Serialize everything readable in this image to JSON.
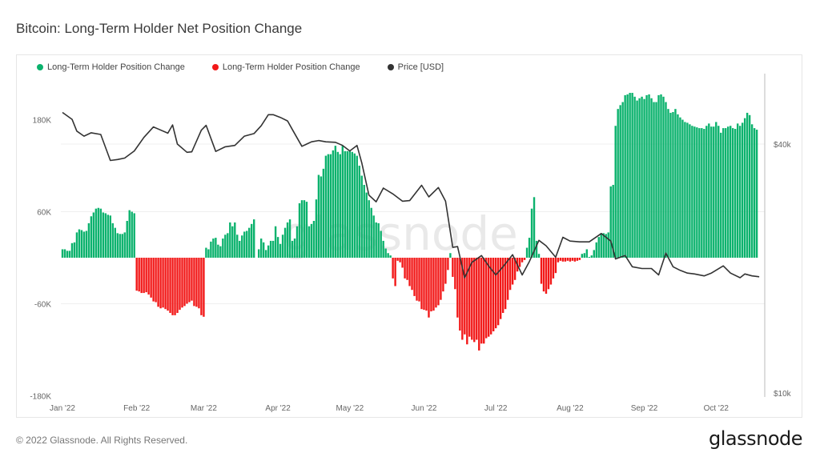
{
  "title": "Bitcoin: Long-Term Holder Net Position Change",
  "footer": "© 2022 Glassnode. All Rights Reserved.",
  "logo_text": "glassnode",
  "watermark": "glassnode",
  "legend": [
    {
      "label": "Long-Term Holder Position Change",
      "color": "#0bb26d"
    },
    {
      "label": "Long-Term Holder Position Change",
      "color": "#f21818"
    },
    {
      "label": "Price [USD]",
      "color": "#333333"
    }
  ],
  "chart_data": {
    "type": "bar",
    "title": "Bitcoin: Long-Term Holder Net Position Change",
    "left_axis": {
      "ticks": [
        180,
        60,
        -60,
        -180
      ],
      "tick_labels": [
        "180K",
        "60K",
        "-60K",
        "-180K"
      ],
      "unit": "K BTC",
      "range": [
        -180,
        180
      ]
    },
    "right_axis": {
      "scale": "log",
      "ticks": [
        40000,
        10000
      ],
      "tick_labels": [
        "$40k",
        "$10k"
      ],
      "range": [
        10000,
        40000
      ]
    },
    "x_axis": {
      "tick_labels": [
        "Jan '22",
        "Feb '22",
        "Mar '22",
        "Apr '22",
        "May '22",
        "Jun '22",
        "Jul '22",
        "Aug '22",
        "Sep '22",
        "Oct '22"
      ]
    },
    "colors": {
      "positive": "#0bb26d",
      "negative": "#f21818",
      "price": "#333333"
    },
    "grid": true,
    "legend_position": "top-left",
    "bars_by_month_K": {
      "2022-01": [
        11,
        11,
        9,
        9,
        19,
        20,
        33,
        37,
        36,
        34,
        35,
        45,
        54,
        59,
        64,
        65,
        64,
        59,
        58,
        56,
        55,
        45,
        39,
        32,
        31,
        31,
        33,
        48,
        62,
        60,
        58
      ],
      "2022-02": [
        -43,
        -44,
        -46,
        -46,
        -45,
        -48,
        -52,
        -57,
        -58,
        -64,
        -66,
        -65,
        -67,
        -69,
        -72,
        -75,
        -75,
        -72,
        -68,
        -65,
        -63,
        -60,
        -58,
        -56,
        -63,
        -64,
        -66,
        -75
      ],
      "2022-03": [
        -77,
        13,
        11,
        21,
        25,
        26,
        17,
        15,
        25,
        30,
        32,
        46,
        41,
        46,
        30,
        22,
        29,
        34,
        35,
        39,
        44,
        50,
        0,
        11,
        25,
        20,
        10,
        16,
        22,
        22,
        41
      ],
      "2022-04": [
        27,
        18,
        30,
        39,
        46,
        50,
        22,
        25,
        41,
        71,
        75,
        75,
        73,
        41,
        44,
        48,
        76,
        108,
        106,
        116,
        133,
        135,
        135,
        140,
        146,
        138,
        135,
        146,
        139,
        139
      ],
      "2022-05": [
        140,
        138,
        136,
        133,
        120,
        107,
        95,
        85,
        75,
        65,
        55,
        46,
        45,
        35,
        22,
        12,
        6,
        3,
        -27,
        -37,
        -4,
        -6,
        -13,
        -27,
        -29,
        -37,
        -42,
        -50,
        -56,
        -57,
        -67
      ],
      "2022-06": [
        -68,
        -69,
        -78,
        -70,
        -69,
        -65,
        -62,
        -55,
        -44,
        -34,
        -16,
        6,
        -25,
        -41,
        -78,
        -95,
        -107,
        -100,
        -113,
        -103,
        -107,
        -110,
        -107,
        -121,
        -112,
        -112,
        -105,
        -103,
        -100,
        -96
      ],
      "2022-07": [
        -92,
        -88,
        -80,
        -72,
        -67,
        -55,
        -42,
        -35,
        -29,
        -18,
        -12,
        -6,
        -3,
        13,
        26,
        64,
        79,
        22,
        5,
        -34,
        -44,
        -47,
        -41,
        -35,
        -27,
        -20,
        -6,
        -4,
        -5,
        -5,
        -4
      ],
      "2022-08": [
        -5,
        -4,
        -5,
        -4,
        -3,
        5,
        6,
        11,
        1,
        3,
        10,
        20,
        27,
        32,
        32,
        31,
        33,
        93,
        95,
        172,
        194,
        199,
        203,
        212,
        213,
        215,
        215,
        210,
        205,
        208,
        210
      ],
      "2022-09": [
        207,
        212,
        213,
        208,
        203,
        203,
        212,
        213,
        210,
        203,
        194,
        189,
        190,
        194,
        187,
        183,
        180,
        177,
        176,
        174,
        172,
        171,
        170,
        169,
        169,
        168,
        172,
        175,
        171,
        171
      ],
      "2022-10": [
        177,
        172,
        163,
        169,
        169,
        171,
        172,
        169,
        168,
        175,
        172,
        176,
        182,
        189,
        186,
        174,
        169,
        167
      ]
    },
    "price_usd": [
      [
        "2022-01-01",
        47700
      ],
      [
        "2022-01-05",
        45900
      ],
      [
        "2022-01-07",
        43000
      ],
      [
        "2022-01-10",
        41800
      ],
      [
        "2022-01-13",
        42600
      ],
      [
        "2022-01-17",
        42200
      ],
      [
        "2022-01-21",
        36500
      ],
      [
        "2022-01-24",
        36700
      ],
      [
        "2022-01-27",
        37000
      ],
      [
        "2022-01-31",
        38500
      ],
      [
        "2022-02-04",
        41500
      ],
      [
        "2022-02-08",
        44000
      ],
      [
        "2022-02-10",
        43500
      ],
      [
        "2022-02-14",
        42500
      ],
      [
        "2022-02-16",
        44500
      ],
      [
        "2022-02-18",
        40000
      ],
      [
        "2022-02-22",
        38200
      ],
      [
        "2022-02-24",
        38300
      ],
      [
        "2022-02-28",
        43200
      ],
      [
        "2022-03-02",
        44400
      ],
      [
        "2022-03-06",
        38400
      ],
      [
        "2022-03-10",
        39400
      ],
      [
        "2022-03-14",
        39700
      ],
      [
        "2022-03-18",
        41800
      ],
      [
        "2022-03-22",
        42400
      ],
      [
        "2022-03-25",
        44300
      ],
      [
        "2022-03-28",
        47100
      ],
      [
        "2022-03-30",
        47100
      ],
      [
        "2022-04-02",
        46400
      ],
      [
        "2022-04-05",
        45500
      ],
      [
        "2022-04-07",
        43400
      ],
      [
        "2022-04-11",
        39500
      ],
      [
        "2022-04-15",
        40500
      ],
      [
        "2022-04-18",
        40800
      ],
      [
        "2022-04-21",
        40500
      ],
      [
        "2022-04-25",
        40400
      ],
      [
        "2022-04-28",
        39700
      ],
      [
        "2022-05-01",
        38500
      ],
      [
        "2022-05-04",
        39700
      ],
      [
        "2022-05-06",
        36000
      ],
      [
        "2022-05-09",
        30100
      ],
      [
        "2022-05-12",
        29000
      ],
      [
        "2022-05-15",
        31300
      ],
      [
        "2022-05-19",
        30300
      ],
      [
        "2022-05-23",
        29100
      ],
      [
        "2022-05-26",
        29200
      ],
      [
        "2022-05-31",
        31800
      ],
      [
        "2022-06-03",
        29800
      ],
      [
        "2022-06-07",
        31400
      ],
      [
        "2022-06-10",
        29100
      ],
      [
        "2022-06-13",
        22500
      ],
      [
        "2022-06-15",
        22600
      ],
      [
        "2022-06-18",
        19000
      ],
      [
        "2022-06-21",
        20700
      ],
      [
        "2022-06-25",
        21500
      ],
      [
        "2022-06-28",
        20300
      ],
      [
        "2022-07-01",
        19300
      ],
      [
        "2022-07-04",
        20200
      ],
      [
        "2022-07-08",
        21600
      ],
      [
        "2022-07-12",
        19300
      ],
      [
        "2022-07-15",
        20800
      ],
      [
        "2022-07-19",
        23400
      ],
      [
        "2022-07-22",
        22700
      ],
      [
        "2022-07-26",
        21300
      ],
      [
        "2022-07-29",
        23800
      ],
      [
        "2022-08-01",
        23300
      ],
      [
        "2022-08-05",
        23200
      ],
      [
        "2022-08-09",
        23200
      ],
      [
        "2022-08-14",
        24300
      ],
      [
        "2022-08-18",
        23300
      ],
      [
        "2022-08-20",
        21100
      ],
      [
        "2022-08-24",
        21500
      ],
      [
        "2022-08-27",
        20200
      ],
      [
        "2022-08-31",
        20000
      ],
      [
        "2022-09-04",
        20000
      ],
      [
        "2022-09-07",
        19300
      ],
      [
        "2022-09-10",
        21800
      ],
      [
        "2022-09-13",
        20200
      ],
      [
        "2022-09-16",
        19800
      ],
      [
        "2022-09-19",
        19500
      ],
      [
        "2022-09-22",
        19400
      ],
      [
        "2022-09-26",
        19200
      ],
      [
        "2022-09-29",
        19500
      ],
      [
        "2022-10-04",
        20300
      ],
      [
        "2022-10-07",
        19500
      ],
      [
        "2022-10-11",
        19000
      ],
      [
        "2022-10-13",
        19400
      ],
      [
        "2022-10-16",
        19200
      ],
      [
        "2022-10-19",
        19100
      ]
    ]
  }
}
